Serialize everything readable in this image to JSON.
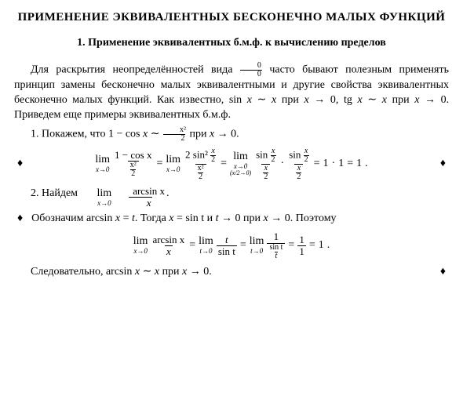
{
  "title": "ПРИМЕНЕНИЕ ЭКВИВАЛЕНТНЫХ БЕСКОНЕЧНО МАЛЫХ ФУНКЦИЙ",
  "subtitle": "1. Применение эквивалентных б.м.ф. к вычислению пределов",
  "p1a": "Для раскрытия неопределённостей вида ",
  "p1b": " часто бывают полезным применять принцип замены бесконечно малых эквивалентными и другие свойства эквивалентных бесконечно малых функций. Как известно, sin ",
  "p1c": " при ",
  "p1d": ", tg ",
  "p1e": " при ",
  "p1f": ". Приведем еще примеры эквивалентных б.м.ф.",
  "item1a": "1. Покажем, что 1 − cos ",
  "item1b": " при ",
  "item1c": ".",
  "item2a": "2. Найдем ",
  "item2b": ".",
  "p3a": "Обозначим arcsin ",
  "p3b": ". Тогда ",
  "p3c": " и ",
  "p3d": " при ",
  "p3e": ". Поэтому",
  "p4a": "Следовательно, arcsin ",
  "p4b": " при ",
  "p4c": ".",
  "sym": {
    "x": "x",
    "t": "t",
    "tilde": "∼",
    "arrow": "→",
    "zero": "0",
    "eq": "=",
    "dot": "·",
    "one": "1",
    "diamond": "♦",
    "lim": "lim",
    "xto0": "x→0",
    "tto0": "t→0",
    "x2to0": "(x/2→0)",
    "zerozero_num": "0",
    "zerozero_den": "0",
    "x2_num": "x²",
    "x2_den": "2",
    "oneMinusCos": "1 − cos x",
    "twoSin2": "2 sin² ",
    "xover2": "x",
    "two": "2",
    "sin": "sin ",
    "asin": "arcsin x",
    "sint": "sin t",
    "sintOverT_num": "sin t",
    "sintOverT_den": "t",
    "oneOverOne_num": "1",
    "oneOverOne_den": "1",
    "eqsint": "= sin t",
    "eqt": "= t"
  }
}
